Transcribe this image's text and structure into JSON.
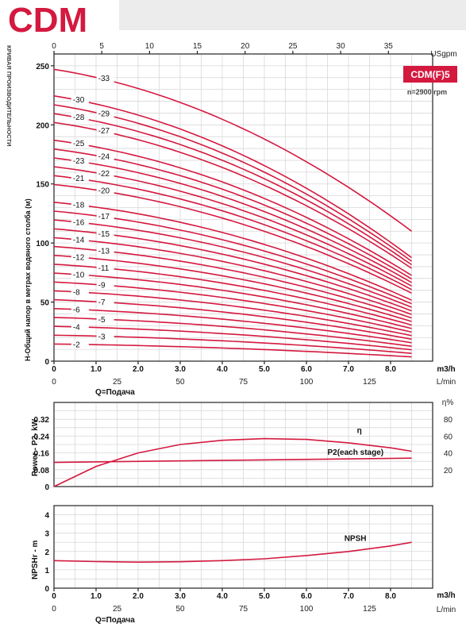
{
  "header": {
    "brand": "CDM",
    "side_label": "КРИВАЯ ПРОИЗВОДИТЕЛЬНОСТИ"
  },
  "colors": {
    "curve": "#d4193f",
    "brand": "#d4193f",
    "model_box": "#d4193f"
  },
  "chart_data": [
    {
      "type": "line",
      "model": "CDM(F)5",
      "speed": "n=2900 rpm",
      "ylabel": "H-Общий напор в метрах водяного столба (м)",
      "xlabel": "Q=Подача",
      "x_unit_top": "USgpm",
      "x_unit_m3h": "m3/h",
      "x_unit_lmin": "L/min",
      "xlim_m3h": [
        0,
        9
      ],
      "ylim": [
        0,
        260
      ],
      "grid": true,
      "ticks_usgpm": [
        "0",
        "5",
        "10",
        "15",
        "20",
        "25",
        "30",
        "35"
      ],
      "ticks_m3h": [
        "0",
        "1.0",
        "2.0",
        "3.0",
        "4.0",
        "5.0",
        "6.0",
        "7.0",
        "8.0"
      ],
      "ticks_lmin": [
        "0",
        "25",
        "50",
        "75",
        "100",
        "125"
      ],
      "ticks_y": [
        "0",
        "50",
        "100",
        "150",
        "200",
        "250"
      ],
      "x_end_m3h": 8.5,
      "series": [
        {
          "name": "-2",
          "shutoff": 14.5,
          "end": 3.6
        },
        {
          "name": "-3",
          "shutoff": 22,
          "end": 6.6
        },
        {
          "name": "-4",
          "shutoff": 29.5,
          "end": 9.6
        },
        {
          "name": "-5",
          "shutoff": 37,
          "end": 12.6
        },
        {
          "name": "-6",
          "shutoff": 44.5,
          "end": 15.6
        },
        {
          "name": "-7",
          "shutoff": 52,
          "end": 18.6
        },
        {
          "name": "-8",
          "shutoff": 59.5,
          "end": 21.6
        },
        {
          "name": "-9",
          "shutoff": 67,
          "end": 24.6
        },
        {
          "name": "-10",
          "shutoff": 74.5,
          "end": 27.6
        },
        {
          "name": "-11",
          "shutoff": 82,
          "end": 30.6
        },
        {
          "name": "-12",
          "shutoff": 89.5,
          "end": 33.6
        },
        {
          "name": "-13",
          "shutoff": 97,
          "end": 36.6
        },
        {
          "name": "-14",
          "shutoff": 104.5,
          "end": 39.6
        },
        {
          "name": "-15",
          "shutoff": 112,
          "end": 42.6
        },
        {
          "name": "-16",
          "shutoff": 119.5,
          "end": 45.6
        },
        {
          "name": "-17",
          "shutoff": 127,
          "end": 48.6
        },
        {
          "name": "-18",
          "shutoff": 134.5,
          "end": 51.6
        },
        {
          "name": "-20",
          "shutoff": 149.5,
          "end": 57.6
        },
        {
          "name": "-21",
          "shutoff": 157,
          "end": 60.6
        },
        {
          "name": "-22",
          "shutoff": 164.5,
          "end": 63.6
        },
        {
          "name": "-23",
          "shutoff": 172,
          "end": 66.6
        },
        {
          "name": "-24",
          "shutoff": 179.5,
          "end": 69.6
        },
        {
          "name": "-25",
          "shutoff": 187,
          "end": 72.6
        },
        {
          "name": "-27",
          "shutoff": 202,
          "end": 78.6
        },
        {
          "name": "-28",
          "shutoff": 209.5,
          "end": 81.6
        },
        {
          "name": "-29",
          "shutoff": 217,
          "end": 84.6
        },
        {
          "name": "-30",
          "shutoff": 224.5,
          "end": 87.6
        },
        {
          "name": "-33",
          "shutoff": 247,
          "end": 110
        }
      ]
    },
    {
      "type": "line",
      "ylabel": "Power - P2- kW",
      "ylabel_right": "η%",
      "ylim": [
        0,
        0.4
      ],
      "ylim_right": [
        0,
        100
      ],
      "ticks_y": [
        "0",
        "0.08",
        "0.16",
        "0.24",
        "0.32"
      ],
      "ticks_y_right": [
        "20",
        "40",
        "60",
        "80"
      ],
      "grid": true,
      "series": [
        {
          "name": "η",
          "axis": "right",
          "x": [
            0,
            1,
            2,
            3,
            4,
            5,
            6,
            7,
            8,
            8.5
          ],
          "y": [
            0,
            24,
            40,
            50,
            55,
            57,
            56,
            52,
            46,
            42
          ]
        },
        {
          "name": "P2(each stage)",
          "axis": "left",
          "x": [
            0,
            8.5
          ],
          "y": [
            0.115,
            0.135
          ]
        }
      ]
    },
    {
      "type": "line",
      "ylabel": "NPSHr - m",
      "xlabel": "Q=Подача",
      "ylim": [
        0,
        4.5
      ],
      "ticks_y": [
        "0",
        "1",
        "2",
        "3",
        "4"
      ],
      "ticks_m3h": [
        "0",
        "1.0",
        "2.0",
        "3.0",
        "4.0",
        "5.0",
        "6.0",
        "7.0",
        "8.0"
      ],
      "ticks_lmin": [
        "0",
        "25",
        "50",
        "75",
        "100",
        "125"
      ],
      "x_unit_m3h": "m3/h",
      "x_unit_lmin": "L/min",
      "grid": true,
      "series": [
        {
          "name": "NPSH",
          "x": [
            0,
            1,
            2,
            3,
            4,
            5,
            6,
            7,
            8,
            8.5
          ],
          "y": [
            1.5,
            1.45,
            1.42,
            1.44,
            1.5,
            1.6,
            1.78,
            2.0,
            2.3,
            2.5
          ]
        }
      ]
    }
  ]
}
